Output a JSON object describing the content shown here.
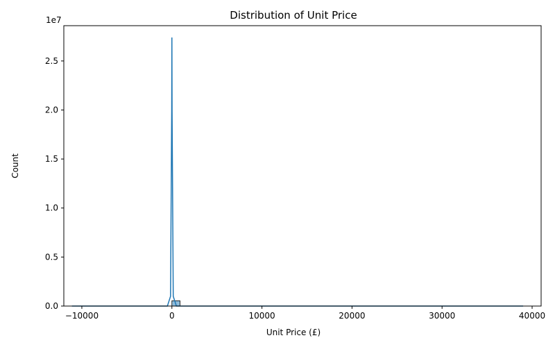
{
  "chart_data": {
    "type": "histogram",
    "title": "Distribution of Unit Price",
    "xlabel": "Unit Price (£)",
    "ylabel": "Count",
    "y_offset_label": "1e7",
    "xlim": [
      -12000,
      41000
    ],
    "ylim": [
      0,
      28600000.0
    ],
    "x_ticks": [
      {
        "value": -10000,
        "label": "−10000"
      },
      {
        "value": 0,
        "label": "0"
      },
      {
        "value": 10000,
        "label": "10000"
      },
      {
        "value": 20000,
        "label": "20000"
      },
      {
        "value": 30000,
        "label": "30000"
      },
      {
        "value": 40000,
        "label": "40000"
      }
    ],
    "y_ticks": [
      {
        "value": 0,
        "label": "0.0"
      },
      {
        "value": 5000000,
        "label": "0.5"
      },
      {
        "value": 10000000,
        "label": "1.0"
      },
      {
        "value": 15000000,
        "label": "1.5"
      },
      {
        "value": 20000000,
        "label": "2.0"
      },
      {
        "value": 25000000,
        "label": "2.5"
      }
    ],
    "bars": [
      {
        "x0": 0,
        "x1": 900,
        "count": 540000
      }
    ],
    "kde": {
      "x": [
        -11100,
        -500,
        -150,
        -20,
        0,
        20,
        150,
        500,
        1000,
        39000
      ],
      "y": [
        0,
        0,
        1000000,
        20000000,
        27400000,
        20000000,
        1000000,
        0,
        0,
        0
      ]
    },
    "grid": false,
    "legend": false
  },
  "colors": {
    "bar_fill": "#1f77b4",
    "bar_opacity": 0.5,
    "line": "#1f77b4",
    "axes": "#000000"
  }
}
